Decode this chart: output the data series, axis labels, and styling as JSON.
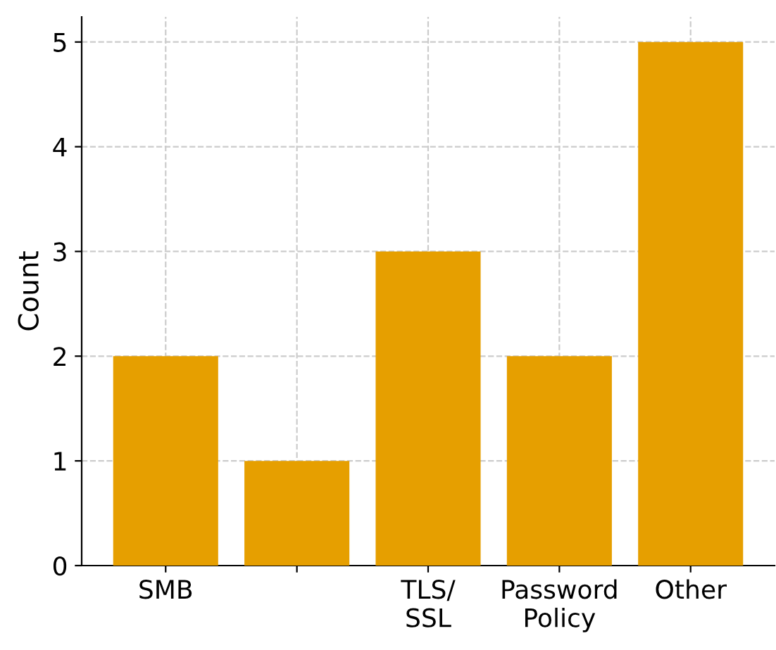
{
  "chart_data": {
    "type": "bar",
    "ylabel": "Count",
    "categories": [
      "SMB",
      null,
      "TLS/\nSSL",
      "Password\nPolicy",
      "Other"
    ],
    "values": [
      2,
      1,
      3,
      2,
      5
    ],
    "color": "#e69f00",
    "ylim": [
      0,
      5.24
    ],
    "yticks": [
      0,
      1,
      2,
      3,
      4,
      5
    ],
    "grid": true,
    "legend": false
  }
}
